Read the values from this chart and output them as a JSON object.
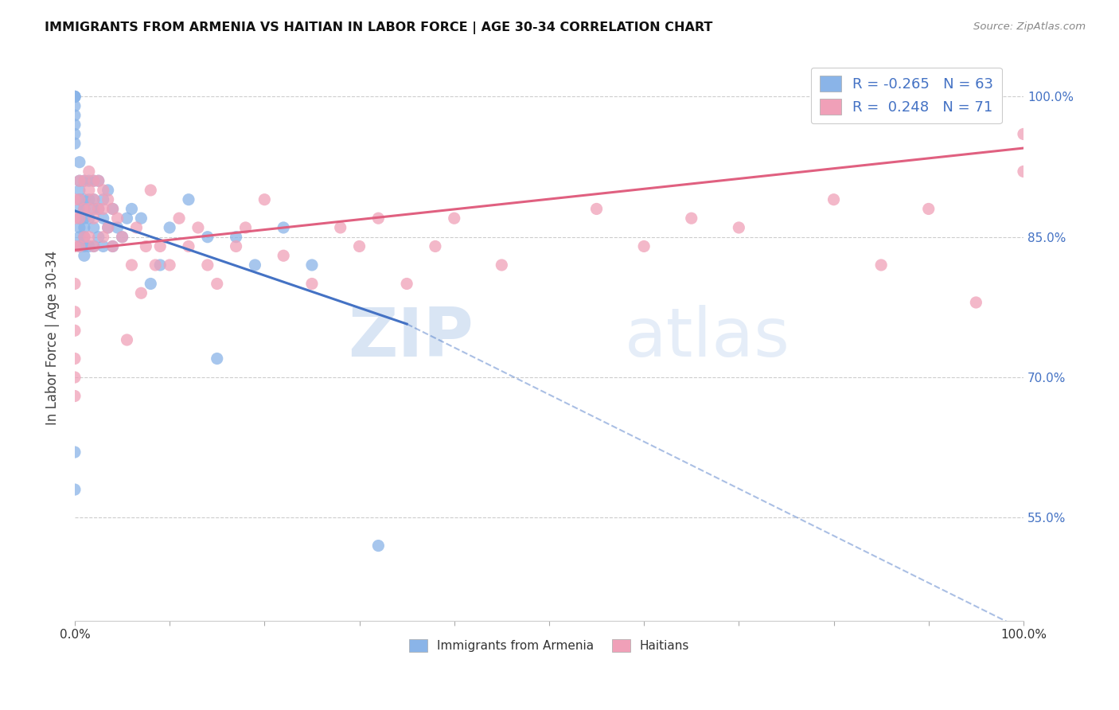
{
  "title": "IMMIGRANTS FROM ARMENIA VS HAITIAN IN LABOR FORCE | AGE 30-34 CORRELATION CHART",
  "source": "Source: ZipAtlas.com",
  "ylabel": "In Labor Force | Age 30-34",
  "xlabel": "",
  "xlim": [
    0.0,
    1.0
  ],
  "ylim": [
    0.44,
    1.045
  ],
  "yticks": [
    0.55,
    0.7,
    0.85,
    1.0
  ],
  "ytick_labels": [
    "55.0%",
    "70.0%",
    "85.0%",
    "100.0%"
  ],
  "xticks": [
    0.0,
    0.5,
    1.0
  ],
  "xtick_labels": [
    "0.0%",
    "",
    "100.0%"
  ],
  "legend_r1": "R = -0.265",
  "legend_n1": "N = 63",
  "legend_r2": "R =  0.248",
  "legend_n2": "N = 71",
  "color_armenia": "#8ab4e8",
  "color_haitian": "#f0a0b8",
  "color_trend_armenia": "#4472c4",
  "color_trend_haitian": "#e06080",
  "color_grid": "#c8c8c8",
  "color_right_axis": "#4472c4",
  "watermark_zip": "ZIP",
  "watermark_atlas": "atlas",
  "armenia_trend_x0": 0.0,
  "armenia_trend_y0": 0.878,
  "armenia_trend_x1": 0.35,
  "armenia_trend_y1": 0.757,
  "armenia_trend_ext_x1": 1.0,
  "armenia_trend_ext_y1": 0.43,
  "haitian_trend_x0": 0.0,
  "haitian_trend_y0": 0.836,
  "haitian_trend_x1": 1.0,
  "haitian_trend_y1": 0.945,
  "armenia_x": [
    0.0,
    0.0,
    0.005,
    0.005,
    0.005,
    0.005,
    0.005,
    0.005,
    0.005,
    0.005,
    0.005,
    0.01,
    0.01,
    0.01,
    0.01,
    0.01,
    0.01,
    0.01,
    0.01,
    0.015,
    0.015,
    0.015,
    0.015,
    0.02,
    0.02,
    0.02,
    0.02,
    0.02,
    0.025,
    0.025,
    0.025,
    0.03,
    0.03,
    0.03,
    0.035,
    0.035,
    0.04,
    0.04,
    0.045,
    0.05,
    0.055,
    0.06,
    0.07,
    0.08,
    0.09,
    0.1,
    0.12,
    0.14,
    0.15,
    0.17,
    0.19,
    0.22,
    0.0,
    0.0,
    0.0,
    0.0,
    0.0,
    0.0,
    0.0,
    0.0,
    0.0,
    0.25,
    0.32
  ],
  "armenia_y": [
    0.62,
    0.58,
    0.93,
    0.91,
    0.9,
    0.89,
    0.88,
    0.87,
    0.86,
    0.85,
    0.84,
    0.91,
    0.89,
    0.88,
    0.87,
    0.86,
    0.85,
    0.84,
    0.83,
    0.91,
    0.89,
    0.87,
    0.84,
    0.91,
    0.89,
    0.88,
    0.86,
    0.84,
    0.91,
    0.88,
    0.85,
    0.89,
    0.87,
    0.84,
    0.9,
    0.86,
    0.88,
    0.84,
    0.86,
    0.85,
    0.87,
    0.88,
    0.87,
    0.8,
    0.82,
    0.86,
    0.89,
    0.85,
    0.72,
    0.85,
    0.82,
    0.86,
    0.95,
    0.96,
    0.97,
    0.98,
    0.99,
    1.0,
    1.0,
    1.0,
    1.0,
    0.82,
    0.52
  ],
  "haitian_x": [
    0.0,
    0.0,
    0.0,
    0.005,
    0.005,
    0.005,
    0.005,
    0.01,
    0.01,
    0.01,
    0.015,
    0.015,
    0.015,
    0.015,
    0.02,
    0.02,
    0.02,
    0.02,
    0.025,
    0.025,
    0.03,
    0.03,
    0.03,
    0.035,
    0.035,
    0.04,
    0.04,
    0.045,
    0.05,
    0.055,
    0.06,
    0.065,
    0.07,
    0.075,
    0.08,
    0.085,
    0.09,
    0.1,
    0.11,
    0.12,
    0.13,
    0.14,
    0.15,
    0.17,
    0.18,
    0.2,
    0.22,
    0.25,
    0.28,
    0.3,
    0.32,
    0.35,
    0.38,
    0.4,
    0.45,
    0.55,
    0.6,
    0.65,
    0.7,
    0.8,
    0.85,
    0.9,
    0.95,
    1.0,
    1.0,
    0.0,
    0.0,
    0.0,
    0.0,
    0.0,
    0.0
  ],
  "haitian_y": [
    0.89,
    0.87,
    0.84,
    0.91,
    0.89,
    0.87,
    0.84,
    0.91,
    0.88,
    0.85,
    0.92,
    0.9,
    0.88,
    0.85,
    0.91,
    0.89,
    0.87,
    0.84,
    0.91,
    0.88,
    0.9,
    0.88,
    0.85,
    0.89,
    0.86,
    0.88,
    0.84,
    0.87,
    0.85,
    0.74,
    0.82,
    0.86,
    0.79,
    0.84,
    0.9,
    0.82,
    0.84,
    0.82,
    0.87,
    0.84,
    0.86,
    0.82,
    0.8,
    0.84,
    0.86,
    0.89,
    0.83,
    0.8,
    0.86,
    0.84,
    0.87,
    0.8,
    0.84,
    0.87,
    0.82,
    0.88,
    0.84,
    0.87,
    0.86,
    0.89,
    0.82,
    0.88,
    0.78,
    0.96,
    0.92,
    0.8,
    0.77,
    0.75,
    0.72,
    0.7,
    0.68
  ]
}
